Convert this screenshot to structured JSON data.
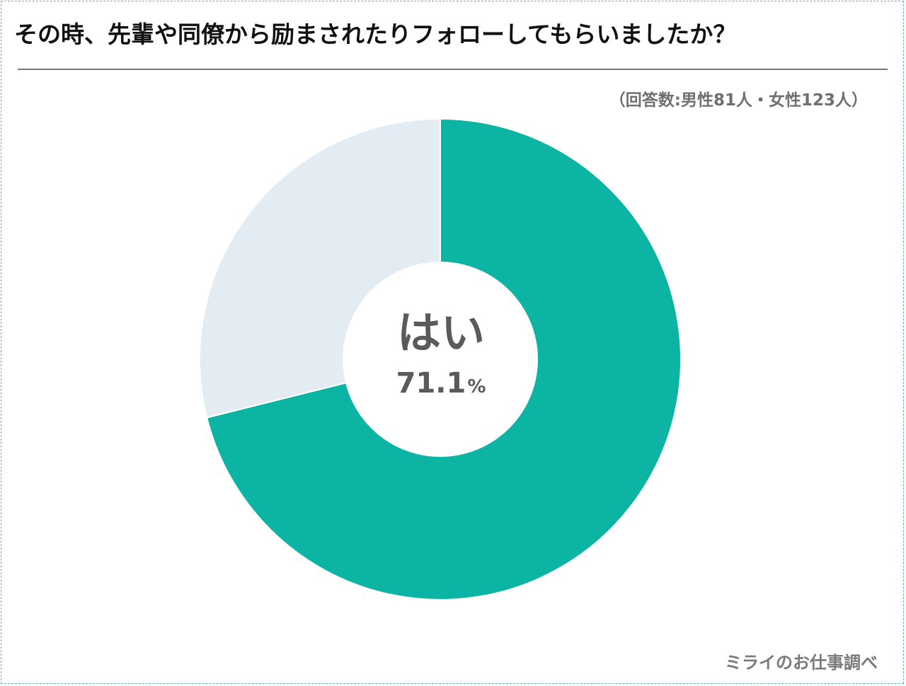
{
  "title": "その時、先輩や同僚から励まされたりフォローしてもらいましたか？",
  "respondents": "（回答数:男性81人・女性123人）",
  "source": "ミライのお仕事調べ",
  "center": {
    "label": "はい",
    "value": "71.1",
    "unit": "%"
  },
  "colors": {
    "yes": "#0cb5a3",
    "no": "#e3ecf2",
    "text": "#5a5a5a"
  },
  "chart_data": {
    "type": "pie",
    "variant": "donut",
    "title": "その時、先輩や同僚から励まされたりフォローしてもらいましたか？",
    "slices": [
      {
        "name": "はい",
        "value": 71.1,
        "color": "#0cb5a3"
      },
      {
        "name": "",
        "value": 28.9,
        "color": "#e3ecf2"
      }
    ],
    "start_angle": "12 o'clock",
    "direction": "clockwise"
  }
}
